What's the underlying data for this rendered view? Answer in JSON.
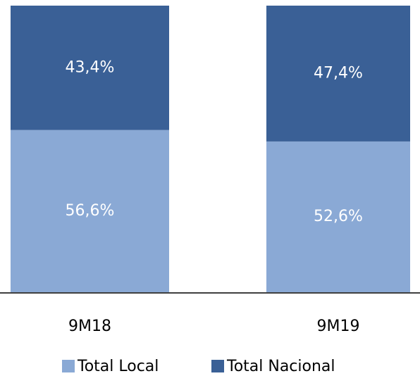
{
  "chart_data": {
    "type": "stacked_bar",
    "categories": [
      "9M18",
      "9M19"
    ],
    "series": [
      {
        "name": "Total Local",
        "color": "#8aa9d5",
        "values": [
          56.6,
          52.6
        ],
        "value_labels": [
          "56,6%",
          "52,6%"
        ]
      },
      {
        "name": "Total Nacional",
        "color": "#3a6096",
        "values": [
          43.4,
          47.4
        ],
        "value_labels": [
          "43,4%",
          "47,4%"
        ]
      }
    ],
    "ylim": [
      0,
      100
    ]
  }
}
